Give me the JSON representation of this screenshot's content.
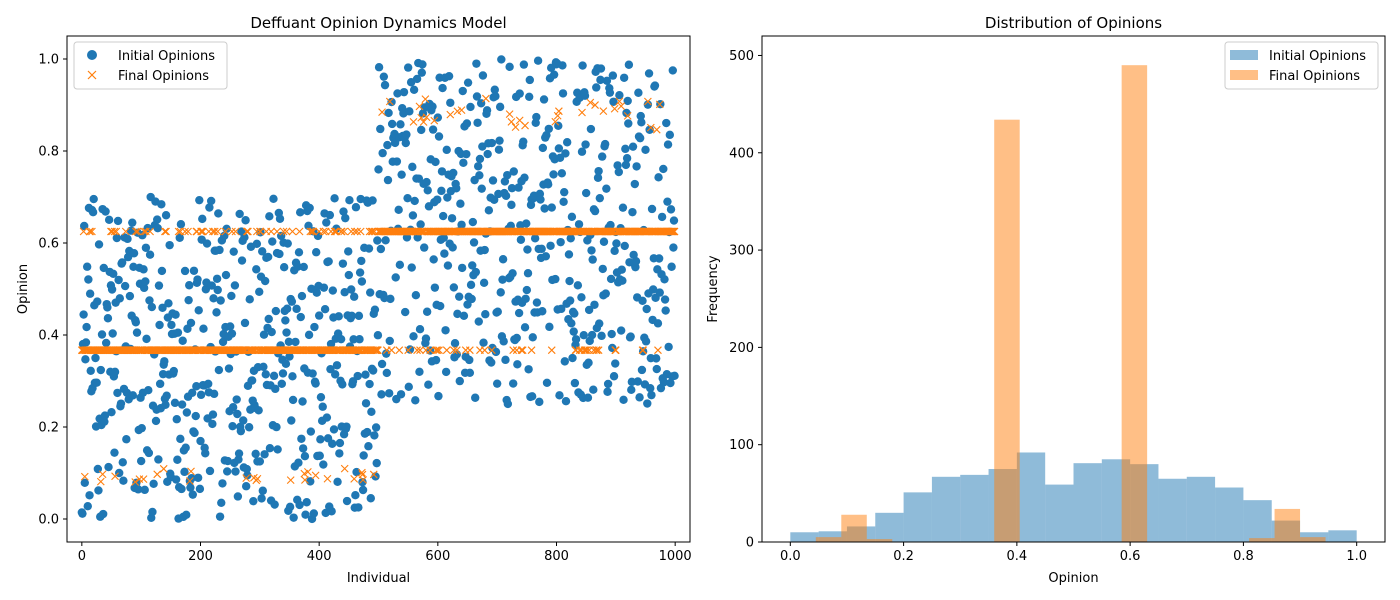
{
  "chart_data": [
    {
      "type": "scatter",
      "title": "Deffuant Opinion Dynamics Model",
      "xlabel": "Individual",
      "ylabel": "Opinion",
      "xlim": [
        -25,
        1025
      ],
      "ylim": [
        -0.05,
        1.05
      ],
      "xticks": [
        0,
        200,
        400,
        600,
        800,
        1000
      ],
      "xtick_labels": [
        "0",
        "200",
        "400",
        "600",
        "800",
        "1000"
      ],
      "yticks": [
        0.0,
        0.2,
        0.4,
        0.6,
        0.8,
        1.0
      ],
      "ytick_labels": [
        "0.0",
        "0.2",
        "0.4",
        "0.6",
        "0.8",
        "1.0"
      ],
      "legend_position": "top-left",
      "series": [
        {
          "name": "Initial Opinions",
          "marker": "circle",
          "color": "#1f77b4",
          "summary": "1000 individuals; opinions uniform in [0, 0.7] for indices 0-499 and in [0.25, 1.0] for indices 500-999"
        },
        {
          "name": "Final Opinions",
          "marker": "x",
          "color": "#ff7f0e",
          "clusters": [
            {
              "value": 0.367,
              "index_range": [
                0,
                999
              ],
              "dense_range": [
                0,
                495
              ]
            },
            {
              "value": 0.625,
              "index_range": [
                0,
                999
              ],
              "dense_range": [
                500,
                999
              ]
            },
            {
              "value": 0.095,
              "index_range": [
                0,
                460
              ]
            },
            {
              "value": 0.88,
              "index_range": [
                500,
                990
              ]
            }
          ]
        }
      ]
    },
    {
      "type": "bar",
      "title": "Distribution of Opinions",
      "xlabel": "Opinion",
      "ylabel": "Frequency",
      "xlim": [
        -0.05,
        1.05
      ],
      "ylim": [
        0,
        520
      ],
      "xticks": [
        0.0,
        0.2,
        0.4,
        0.6,
        0.8,
        1.0
      ],
      "xtick_labels": [
        "0.0",
        "0.2",
        "0.4",
        "0.6",
        "0.8",
        "1.0"
      ],
      "yticks": [
        0,
        100,
        200,
        300,
        400,
        500
      ],
      "ytick_labels": [
        "0",
        "100",
        "200",
        "300",
        "400",
        "500"
      ],
      "legend_position": "top-right",
      "series": [
        {
          "name": "Initial Opinions",
          "color": "#1f77b4",
          "alpha": 0.5,
          "bin_edges": [
            0.0,
            0.05,
            0.1,
            0.15,
            0.2,
            0.25,
            0.3,
            0.35,
            0.4,
            0.45,
            0.5,
            0.55,
            0.6,
            0.65,
            0.7,
            0.75,
            0.8,
            0.85,
            0.9,
            0.95,
            1.0
          ],
          "values": [
            10,
            11,
            16,
            30,
            51,
            67,
            69,
            75,
            92,
            59,
            81,
            85,
            80,
            65,
            67,
            56,
            43,
            22,
            10,
            12
          ]
        },
        {
          "name": "Final Opinions",
          "color": "#ff7f0e",
          "alpha": 0.5,
          "bin_edges": [
            0.045,
            0.09,
            0.135,
            0.18,
            0.225,
            0.27,
            0.315,
            0.36,
            0.405,
            0.45,
            0.495,
            0.54,
            0.585,
            0.63,
            0.675,
            0.72,
            0.765,
            0.81,
            0.855,
            0.9,
            0.945
          ],
          "values": [
            5,
            28,
            3,
            0,
            0,
            0,
            0,
            434,
            0,
            0,
            0,
            0,
            490,
            0,
            0,
            0,
            0,
            4,
            34,
            5
          ]
        }
      ]
    }
  ]
}
